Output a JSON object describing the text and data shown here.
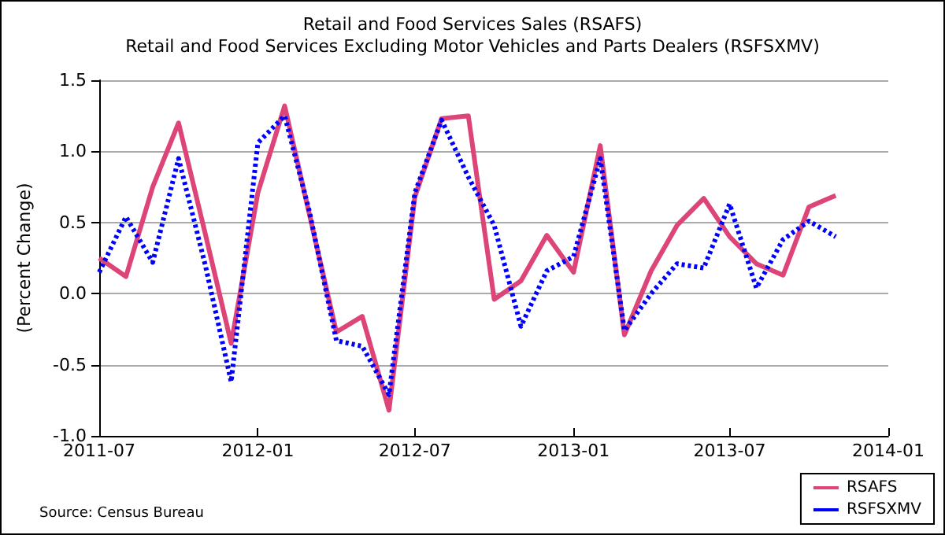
{
  "chart_data": {
    "type": "line",
    "title": "Retail and Food Services Sales (RSAFS)",
    "subtitle": "Retail and Food Services Excluding Motor Vehicles and Parts Dealers (RSFSXMV)",
    "ylabel": "(Percent Change)",
    "annotations": [
      "Source: Census Bureau"
    ],
    "x": [
      "2011-07",
      "2011-08",
      "2011-09",
      "2011-10",
      "2011-11",
      "2011-12",
      "2012-01",
      "2012-02",
      "2012-03",
      "2012-04",
      "2012-05",
      "2012-06",
      "2012-07",
      "2012-08",
      "2012-09",
      "2012-10",
      "2012-11",
      "2012-12",
      "2013-01",
      "2013-02",
      "2013-03",
      "2013-04",
      "2013-05",
      "2013-06",
      "2013-07",
      "2013-08",
      "2013-09",
      "2013-10",
      "2013-11"
    ],
    "series": [
      {
        "name": "RSAFS",
        "color": "#dd4477",
        "line_style": "solid",
        "values": [
          0.25,
          0.12,
          0.75,
          1.2,
          0.42,
          -0.35,
          0.71,
          1.32,
          0.55,
          -0.27,
          -0.16,
          -0.82,
          0.68,
          1.23,
          1.25,
          -0.04,
          0.09,
          0.41,
          0.15,
          1.04,
          -0.29,
          0.16,
          0.48,
          0.67,
          0.4,
          0.21,
          0.13,
          0.61,
          0.69
        ]
      },
      {
        "name": "RSFSXMV",
        "color": "#0000ff",
        "line_style": "dotted",
        "values": [
          0.15,
          0.54,
          0.22,
          0.95,
          0.2,
          -0.62,
          1.06,
          1.25,
          0.57,
          -0.33,
          -0.37,
          -0.71,
          0.71,
          1.22,
          0.82,
          0.48,
          -0.23,
          0.16,
          0.26,
          0.95,
          -0.26,
          0.0,
          0.21,
          0.18,
          0.63,
          0.04,
          0.38,
          0.51,
          0.4
        ]
      }
    ],
    "xlim": [
      "2011-07",
      "2014-01"
    ],
    "xticks": [
      "2011-07",
      "2012-01",
      "2012-07",
      "2013-01",
      "2013-07",
      "2014-01"
    ],
    "ylim": [
      -1.0,
      1.5
    ],
    "yticks": [
      {
        "value": -1.0,
        "label": "-1.0"
      },
      {
        "value": -0.5,
        "label": "-0.5"
      },
      {
        "value": 0,
        "label": "0.0"
      },
      {
        "value": 0.5,
        "label": "0.5"
      },
      {
        "value": 1.0,
        "label": "1.0"
      },
      {
        "value": 1.5,
        "label": "1.5"
      }
    ],
    "grid": "y",
    "legend": "bottom right",
    "marker": "none"
  }
}
